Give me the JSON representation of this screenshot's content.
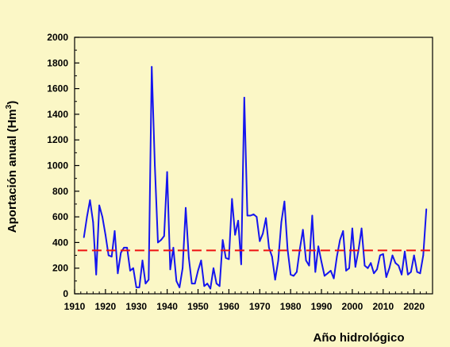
{
  "chart_data": {
    "type": "line",
    "title": "",
    "xlabel": "Año hidrológico",
    "ylabel_main": "Aportación anual (Hm",
    "ylabel_sup": "3",
    "ylabel_close": ")",
    "xlim": [
      1910,
      2026
    ],
    "ylim": [
      0,
      2000
    ],
    "xticks": [
      1910,
      1920,
      1930,
      1940,
      1950,
      1960,
      1970,
      1980,
      1990,
      2000,
      2010,
      2020
    ],
    "xticks_minor_step": 2,
    "yticks": [
      0,
      200,
      400,
      600,
      800,
      1000,
      1200,
      1400,
      1600,
      1800,
      2000
    ],
    "yticks_minor_step": 100,
    "grid": false,
    "series": [
      {
        "color": "#1515EE",
        "x": [
          1913,
          1914,
          1915,
          1916,
          1917,
          1918,
          1919,
          1920,
          1921,
          1922,
          1923,
          1924,
          1925,
          1926,
          1927,
          1928,
          1929,
          1930,
          1931,
          1932,
          1933,
          1934,
          1935,
          1936,
          1937,
          1938,
          1939,
          1940,
          1941,
          1942,
          1943,
          1944,
          1945,
          1946,
          1947,
          1948,
          1949,
          1950,
          1951,
          1952,
          1953,
          1954,
          1955,
          1956,
          1957,
          1958,
          1959,
          1960,
          1961,
          1962,
          1963,
          1964,
          1965,
          1966,
          1967,
          1968,
          1969,
          1970,
          1971,
          1972,
          1973,
          1974,
          1975,
          1976,
          1977,
          1978,
          1979,
          1980,
          1981,
          1982,
          1983,
          1984,
          1985,
          1986,
          1987,
          1988,
          1989,
          1990,
          1991,
          1992,
          1993,
          1994,
          1995,
          1996,
          1997,
          1998,
          1999,
          2000,
          2001,
          2002,
          2003,
          2004,
          2005,
          2006,
          2007,
          2008,
          2009,
          2010,
          2011,
          2012,
          2013,
          2014,
          2015,
          2016,
          2017,
          2018,
          2019,
          2020,
          2021,
          2022,
          2023,
          2024
        ],
        "y": [
          440,
          600,
          730,
          560,
          150,
          690,
          600,
          460,
          300,
          290,
          490,
          160,
          320,
          360,
          360,
          180,
          200,
          50,
          50,
          260,
          80,
          110,
          1770,
          1000,
          400,
          420,
          450,
          950,
          190,
          360,
          100,
          50,
          200,
          670,
          280,
          80,
          80,
          180,
          260,
          60,
          80,
          40,
          200,
          80,
          60,
          420,
          280,
          270,
          740,
          460,
          570,
          230,
          1530,
          610,
          610,
          620,
          600,
          410,
          470,
          590,
          360,
          290,
          110,
          260,
          560,
          720,
          350,
          150,
          140,
          170,
          350,
          500,
          260,
          220,
          610,
          170,
          370,
          250,
          140,
          160,
          180,
          120,
          290,
          420,
          490,
          180,
          200,
          510,
          210,
          340,
          510,
          220,
          200,
          240,
          160,
          190,
          300,
          310,
          130,
          200,
          300,
          240,
          220,
          150,
          330,
          150,
          170,
          300,
          170,
          160,
          300,
          660
        ]
      },
      {
        "color": "#EE1111",
        "dashed": true,
        "x": [
          1911,
          2026
        ],
        "y": [
          338,
          338
        ]
      }
    ]
  }
}
